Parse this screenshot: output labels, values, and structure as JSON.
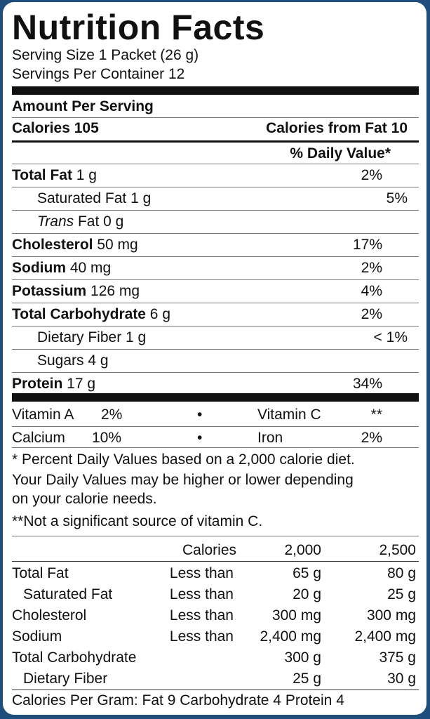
{
  "title": "Nutrition Facts",
  "serving_size": "Serving Size 1 Packet (26 g)",
  "servings_per_container": "Servings Per Container 12",
  "amount_per_serving": "Amount Per Serving",
  "calories": "Calories 105",
  "calories_from_fat": "Calories from Fat 10",
  "daily_value_header": "% Daily Value*",
  "nutrients": [
    {
      "name": "Total Fat",
      "amount": " 1 g",
      "pct": "2%",
      "bold": true
    },
    {
      "name": "Saturated Fat 1 g",
      "amount": "",
      "pct": "5%",
      "bold": false
    },
    {
      "name": "Trans",
      "amount": " Fat 0 g",
      "pct": "",
      "bold": false
    },
    {
      "name": "Cholesterol",
      "amount": " 50 mg",
      "pct": "17%",
      "bold": true
    },
    {
      "name": "Sodium",
      "amount": " 40 mg",
      "pct": "2%",
      "bold": true
    },
    {
      "name": "Potassium",
      "amount": " 126 mg",
      "pct": "4%",
      "bold": true
    },
    {
      "name": "Total Carbohydrate",
      "amount": " 6 g",
      "pct": "2%",
      "bold": true
    },
    {
      "name": "Dietary Fiber 1 g",
      "amount": "",
      "pct": "< 1%",
      "bold": false
    },
    {
      "name": "Sugars 4 g",
      "amount": "",
      "pct": "",
      "bold": false
    },
    {
      "name": "Protein",
      "amount": " 17 g",
      "pct": "34%",
      "bold": true
    }
  ],
  "vitamins": [
    {
      "left_name": "Vitamin A",
      "left_pct": "2%",
      "bullet": "•",
      "right_name": "Vitamin C",
      "right_pct": "**"
    },
    {
      "left_name": "Calcium",
      "left_pct": "10%",
      "bullet": "•",
      "right_name": "Iron",
      "right_pct": "2%"
    }
  ],
  "footnote1": "* Percent Daily Values based on a 2,000 calorie diet.",
  "footnote2": "Your Daily Values may be higher or lower depending",
  "footnote3": "on your calorie needs.",
  "footnote4": "**Not a significant source of vitamin C.",
  "dv_table": {
    "header": [
      "",
      "Calories",
      "2,000",
      "2,500"
    ],
    "rows": [
      [
        "Total Fat",
        "Less than",
        "65 g",
        "80 g"
      ],
      [
        "Saturated Fat",
        "Less than",
        "20 g",
        "25 g"
      ],
      [
        "Cholesterol",
        "Less than",
        "300 mg",
        "300 mg"
      ],
      [
        "Sodium",
        "Less than",
        "2,400 mg",
        "2,400 mg"
      ],
      [
        "Total Carbohydrate",
        "",
        "300 g",
        "375 g"
      ],
      [
        "Dietary Fiber",
        "",
        "25 g",
        "30 g"
      ]
    ]
  },
  "calories_per_gram": "Calories Per Gram: Fat 9   Carbohydrate 4   Protein 4",
  "colors": {
    "border": "#1f4e7c",
    "ink": "#111111"
  }
}
